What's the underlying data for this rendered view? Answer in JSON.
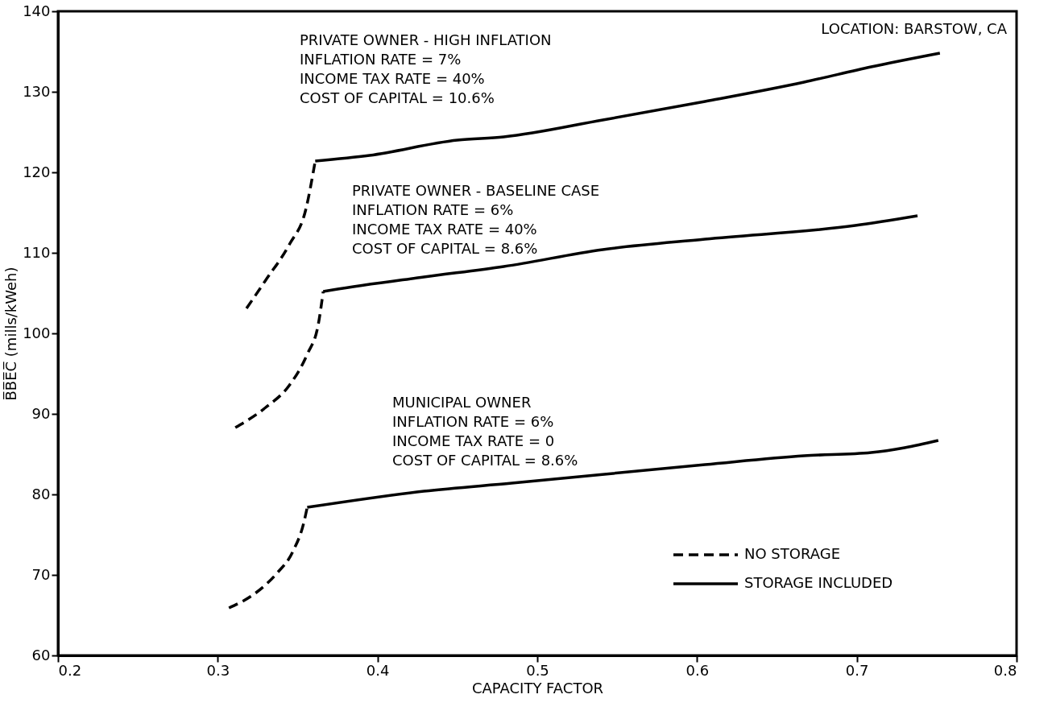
{
  "chart_data": {
    "type": "line",
    "xlabel": "CAPACITY FACTOR",
    "ylabel": "B̅B̅E̅C̅ (mills/kWeh)",
    "xlim": [
      0.2,
      0.8
    ],
    "xticks": [
      0.2,
      0.3,
      0.4,
      0.5,
      0.6,
      0.7,
      0.8
    ],
    "ylim": [
      60,
      140
    ],
    "yticks": [
      60,
      70,
      80,
      90,
      100,
      110,
      120,
      130,
      140
    ],
    "grid": false,
    "legend": "bottom right",
    "marker": "none",
    "series": [
      {
        "name": "NO STORAGE",
        "color": "#000000",
        "line_style": "dashed",
        "x": [
          0.318,
          0.33,
          0.345,
          0.355,
          0.361
        ],
        "values": [
          103.1,
          106.6,
          111.1,
          115.3,
          121.4
        ]
      },
      {
        "name": "STORAGE INCLUDED",
        "color": "#000000",
        "line_style": "solid",
        "x": [
          0.361,
          0.395,
          0.45,
          0.479,
          0.541,
          0.605,
          0.667,
          0.709,
          0.752
        ],
        "values": [
          121.4,
          122.1,
          124.0,
          124.4,
          126.5,
          128.8,
          131.2,
          133.1,
          134.8
        ]
      },
      {
        "color": "#000000",
        "line_style": "dashed",
        "x": [
          0.311,
          0.33,
          0.345,
          0.356,
          0.363,
          0.366
        ],
        "values": [
          88.3,
          90.8,
          93.6,
          97.4,
          101.2,
          105.2
        ]
      },
      {
        "color": "#000000",
        "line_style": "solid",
        "x": [
          0.366,
          0.372,
          0.429,
          0.479,
          0.541,
          0.605,
          0.699,
          0.738
        ],
        "values": [
          105.2,
          105.4,
          107.0,
          108.3,
          110.4,
          111.7,
          113.4,
          114.6
        ]
      },
      {
        "color": "#000000",
        "line_style": "dashed",
        "x": [
          0.307,
          0.324,
          0.337,
          0.347,
          0.354,
          0.356
        ],
        "values": [
          65.9,
          67.8,
          70.2,
          72.9,
          76.6,
          78.4
        ]
      },
      {
        "color": "#000000",
        "line_style": "solid",
        "x": [
          0.356,
          0.429,
          0.484,
          0.605,
          0.667,
          0.709,
          0.73,
          0.751
        ],
        "values": [
          78.4,
          80.4,
          81.4,
          83.7,
          84.8,
          85.2,
          85.8,
          86.7
        ]
      }
    ],
    "annotations": [
      "PRIVATE OWNER -  HIGH INFLATION\n     INFLATION RATE = 7%\n     INCOME TAX RATE = 40%\n     COST OF CAPITAL = 10.6%",
      "PRIVATE OWNER - BASELINE CASE\n     INFLATION RATE = 6%\n     INCOME TAX RATE = 40%\n    COST OF CAPITAL = 8.6%",
      "MUNICIPAL OWNER\n     INFLATION RATE = 6%\n     INCOME TAX RATE = 0\n     COST OF CAPITAL = 8.6%",
      "LOCATION:  BARSTOW, CA"
    ]
  }
}
